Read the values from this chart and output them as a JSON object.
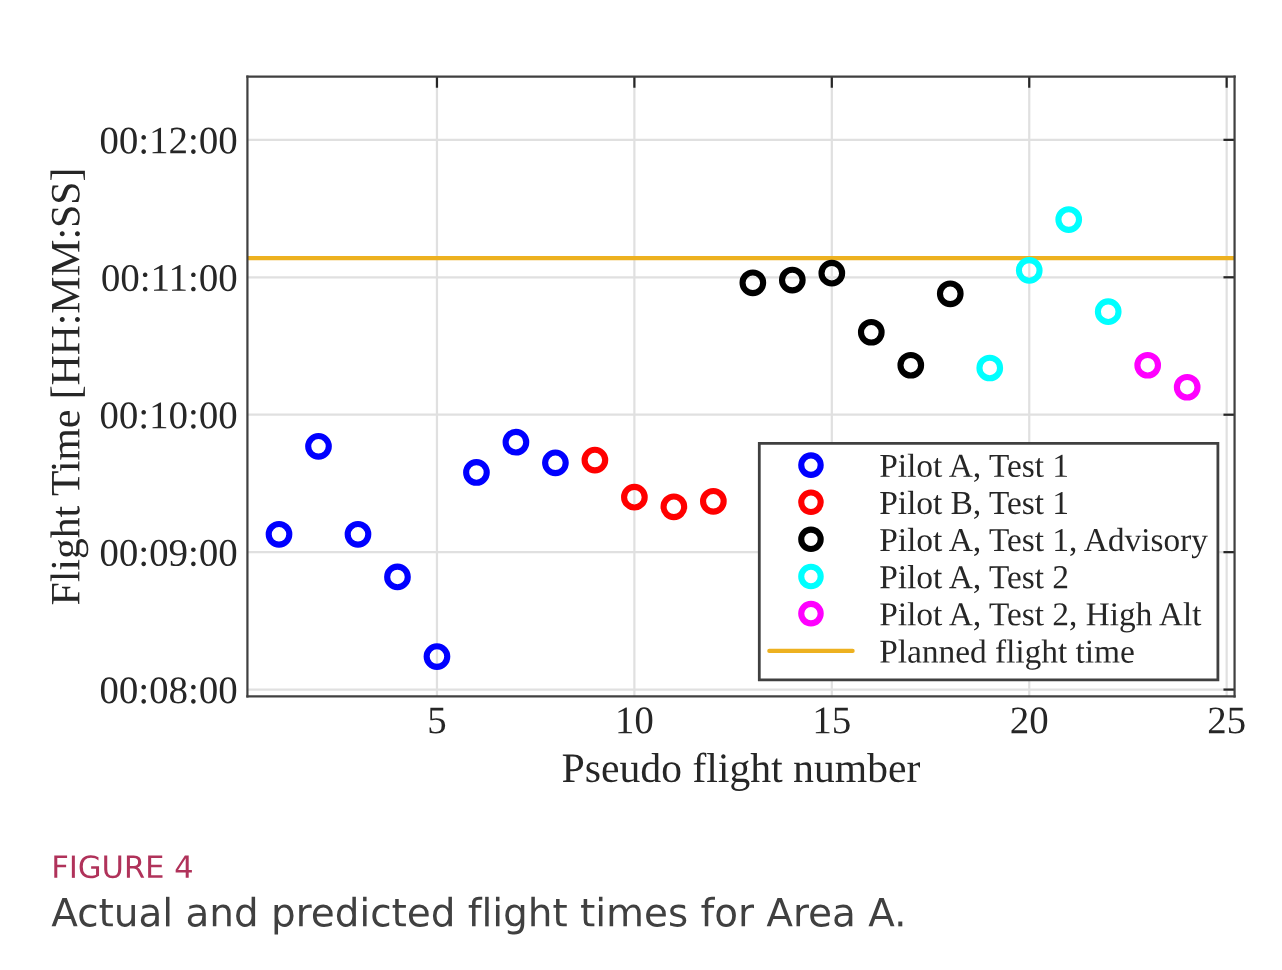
{
  "chart_data": {
    "type": "scatter",
    "xlabel": "Pseudo flight number",
    "ylabel": "Flight Time [HH:MM:SS]",
    "series": [
      {
        "name": "Pilot A, Test 1",
        "color": "#0000ff",
        "x": [
          1,
          2,
          3,
          4,
          5,
          6,
          7,
          8
        ],
        "values": [
          9.13,
          9.77,
          9.13,
          8.82,
          8.24,
          9.58,
          9.8,
          9.65
        ]
      },
      {
        "name": "Pilot B, Test 1",
        "color": "#ff0000",
        "x": [
          9,
          10,
          11,
          12
        ],
        "values": [
          9.67,
          9.4,
          9.33,
          9.37
        ]
      },
      {
        "name": "Pilot A, Test 1, Advisory",
        "color": "#000000",
        "x": [
          13,
          14,
          15,
          16,
          17,
          18
        ],
        "values": [
          10.96,
          10.98,
          11.03,
          10.6,
          10.36,
          10.88
        ]
      },
      {
        "name": "Pilot A, Test 2",
        "color": "#00ffff",
        "x": [
          19,
          20,
          21,
          22
        ],
        "values": [
          10.34,
          11.05,
          11.42,
          10.75
        ]
      },
      {
        "name": "Pilot A, Test 2, High Alt",
        "color": "#ff00ff",
        "x": [
          23,
          24
        ],
        "values": [
          10.36,
          10.2
        ]
      }
    ],
    "ref_lines": [
      {
        "axis": "y",
        "value": 11.14,
        "label": "Planned flight time",
        "color": "#edb120",
        "line_style": "solid"
      }
    ],
    "xlim": [
      0.2,
      25.2
    ],
    "xticks": [
      5,
      10,
      15,
      20,
      25
    ],
    "ylim": [
      7.95,
      12.46
    ],
    "yticks": [
      {
        "value": 8,
        "label": "00:08:00"
      },
      {
        "value": 9,
        "label": "00:09:00"
      },
      {
        "value": 10,
        "label": "00:10:00"
      },
      {
        "value": 11,
        "label": "00:11:00"
      },
      {
        "value": 12,
        "label": "00:12:00"
      }
    ],
    "marker": "circle",
    "grid": true,
    "legend": "bottom right",
    "annotations": [
      "FIGURE 4",
      "Actual and predicted flight times for Area A."
    ]
  }
}
